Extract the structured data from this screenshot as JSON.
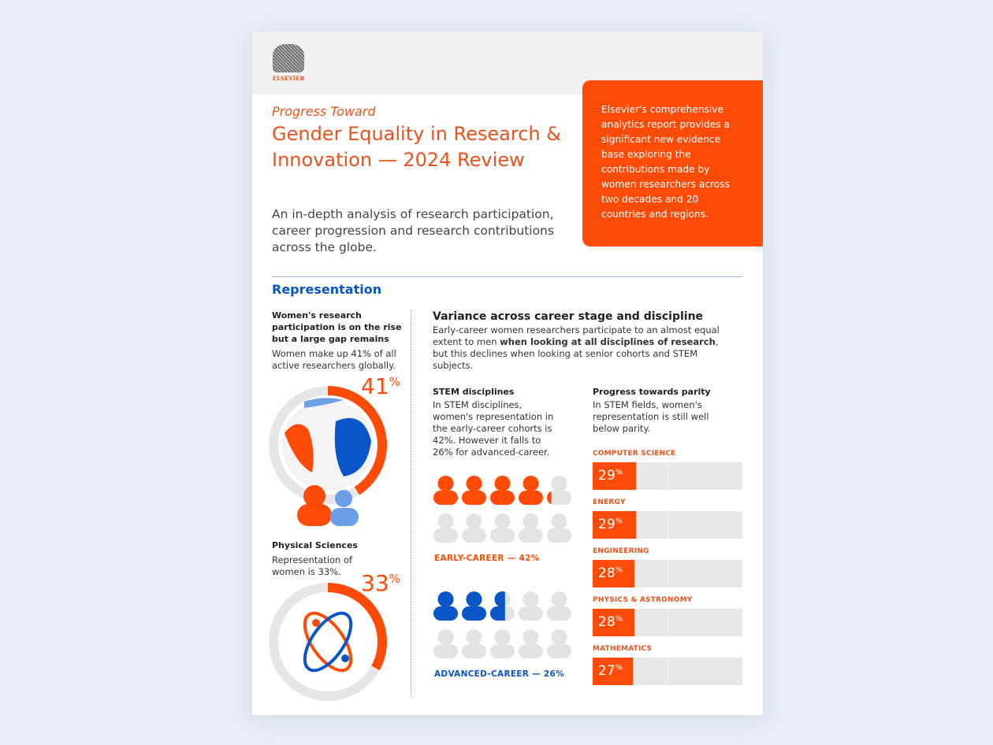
{
  "brand": {
    "logo_text": "ELSEVIER"
  },
  "header": {
    "kicker": "Progress Toward",
    "title": "Gender Equality in Research & Innovation — 2024 Review",
    "lede": "An in-depth analysis of research participation, career progression and research contributions across the globe.",
    "callout": "Elsevier's comprehensive analytics report provides a significant new evidence base exploring the contributions made by women researchers across two decades and 20 countries and regions."
  },
  "section": {
    "title": "Representation"
  },
  "left": {
    "participation": {
      "heading": "Women's research participation is on the rise but a large gap remains",
      "body": "Women make up 41% of all active researchers globally.",
      "value": "41",
      "unit": "%",
      "fraction": 0.41
    },
    "physical": {
      "heading": "Physical Sciences",
      "body": "Representation of women is 33%.",
      "value": "33",
      "unit": "%",
      "fraction": 0.33
    }
  },
  "variance": {
    "heading": "Variance across career stage and discipline",
    "body_pre": "Early-career women researchers participate to an almost equal extent to men ",
    "body_bold": "when looking at all disciplines of research",
    "body_post": ", but this declines when looking at senior cohorts and STEM subjects."
  },
  "stem": {
    "heading": "STEM disciplines",
    "body": "In STEM disciplines, women's representation in the early-career cohorts is 42%. However it falls to 26% for advanced-career.",
    "early": {
      "label": "EARLY-CAREER — 42%",
      "fraction": 0.42,
      "color": "#ff4b08"
    },
    "advanced": {
      "label": "ADVANCED-CAREER — 26%",
      "fraction": 0.26,
      "color": "#0a55c8"
    }
  },
  "parity": {
    "heading": "Progress towards parity",
    "body": "In STEM fields, women's representation is still well below parity.",
    "bars": [
      {
        "label": "COMPUTER SCIENCE",
        "value": 29,
        "text": "29"
      },
      {
        "label": "ENERGY",
        "value": 29,
        "text": "29"
      },
      {
        "label": "ENGINEERING",
        "value": 28,
        "text": "28"
      },
      {
        "label": "PHYSICS & ASTRONOMY",
        "value": 28,
        "text": "28"
      },
      {
        "label": "MATHEMATICS",
        "value": 27,
        "text": "27"
      }
    ],
    "unit": "%"
  },
  "colors": {
    "accent": "#ff4b08",
    "blue": "#0a55c8",
    "grey": "#e8e8e8"
  }
}
